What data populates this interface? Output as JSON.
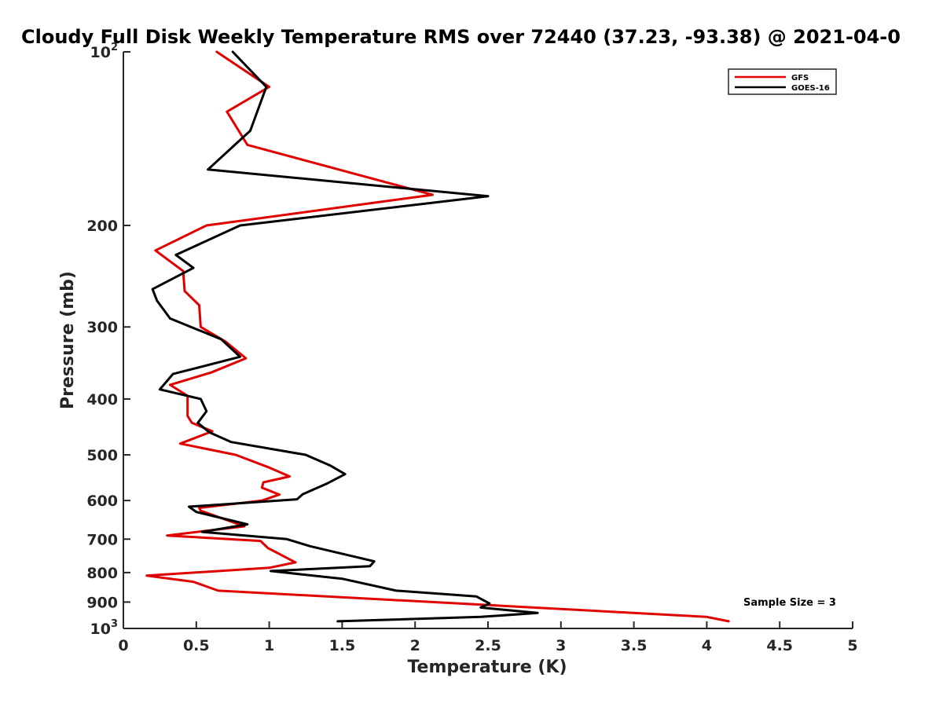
{
  "chart_data": {
    "type": "line",
    "title": "Cloudy Full Disk Weekly Temperature RMS over 72440 (37.23, -93.38) @ 2021-04-0",
    "xlabel": "Temperature (K)",
    "ylabel": "Pressure (mb)",
    "xlim": [
      0,
      5
    ],
    "ylim": [
      100,
      1000
    ],
    "y_scale": "log",
    "y_reversed": true,
    "x_ticks": [
      "0",
      "0.5",
      "1",
      "1.5",
      "2",
      "2.5",
      "3",
      "3.5",
      "4",
      "4.5",
      "5"
    ],
    "y_ticks": [
      {
        "value": 100,
        "base": "10",
        "exp": "2"
      },
      {
        "value": 200,
        "label": "200"
      },
      {
        "value": 300,
        "label": "300"
      },
      {
        "value": 400,
        "label": "400"
      },
      {
        "value": 500,
        "label": "500"
      },
      {
        "value": 600,
        "label": "600"
      },
      {
        "value": 700,
        "label": "700"
      },
      {
        "value": 800,
        "label": "800"
      },
      {
        "value": 900,
        "label": "900"
      },
      {
        "value": 1000,
        "base": "10",
        "exp": "3"
      }
    ],
    "grid": false,
    "legend_position": "top-right",
    "annotation": "Sample Size = 3",
    "series": [
      {
        "name": "GFS",
        "color": "#e00000",
        "points": [
          [
            0.64,
            100
          ],
          [
            1.0,
            115
          ],
          [
            0.71,
            127
          ],
          [
            0.85,
            145
          ],
          [
            2.12,
            177
          ],
          [
            0.57,
            200
          ],
          [
            0.22,
            221
          ],
          [
            0.41,
            240
          ],
          [
            0.42,
            260
          ],
          [
            0.52,
            275
          ],
          [
            0.53,
            300
          ],
          [
            0.7,
            318
          ],
          [
            0.84,
            340
          ],
          [
            0.6,
            360
          ],
          [
            0.32,
            378
          ],
          [
            0.44,
            395
          ],
          [
            0.44,
            428
          ],
          [
            0.47,
            440
          ],
          [
            0.61,
            455
          ],
          [
            0.39,
            478
          ],
          [
            0.77,
            500
          ],
          [
            1.0,
            526
          ],
          [
            1.14,
            545
          ],
          [
            0.96,
            558
          ],
          [
            0.95,
            570
          ],
          [
            1.07,
            586
          ],
          [
            0.95,
            600
          ],
          [
            0.52,
            618
          ],
          [
            0.53,
            625
          ],
          [
            0.83,
            665
          ],
          [
            0.3,
            690
          ],
          [
            0.94,
            705
          ],
          [
            0.99,
            725
          ],
          [
            1.18,
            768
          ],
          [
            1.0,
            785
          ],
          [
            0.16,
            810
          ],
          [
            0.48,
            830
          ],
          [
            0.65,
            860
          ],
          [
            2.47,
            910
          ],
          [
            4.0,
            955
          ],
          [
            4.15,
            972
          ]
        ]
      },
      {
        "name": "GOES-16",
        "color": "#000000",
        "points": [
          [
            0.75,
            100
          ],
          [
            0.98,
            115
          ],
          [
            0.87,
            137
          ],
          [
            0.58,
            160
          ],
          [
            2.5,
            178
          ],
          [
            0.8,
            200
          ],
          [
            0.36,
            225
          ],
          [
            0.48,
            237
          ],
          [
            0.2,
            258
          ],
          [
            0.23,
            270
          ],
          [
            0.32,
            290
          ],
          [
            0.67,
            315
          ],
          [
            0.8,
            338
          ],
          [
            0.34,
            362
          ],
          [
            0.25,
            385
          ],
          [
            0.53,
            400
          ],
          [
            0.57,
            420
          ],
          [
            0.51,
            440
          ],
          [
            0.59,
            457
          ],
          [
            0.74,
            475
          ],
          [
            1.25,
            500
          ],
          [
            1.42,
            522
          ],
          [
            1.52,
            540
          ],
          [
            1.4,
            560
          ],
          [
            1.23,
            585
          ],
          [
            1.19,
            597
          ],
          [
            0.45,
            615
          ],
          [
            0.5,
            628
          ],
          [
            0.85,
            660
          ],
          [
            0.54,
            680
          ],
          [
            1.12,
            700
          ],
          [
            1.28,
            720
          ],
          [
            1.72,
            765
          ],
          [
            1.69,
            780
          ],
          [
            1.01,
            795
          ],
          [
            1.5,
            820
          ],
          [
            1.87,
            860
          ],
          [
            2.42,
            880
          ],
          [
            2.51,
            905
          ],
          [
            2.45,
            920
          ],
          [
            2.84,
            940
          ],
          [
            2.45,
            955
          ],
          [
            1.47,
            972
          ]
        ]
      }
    ]
  }
}
